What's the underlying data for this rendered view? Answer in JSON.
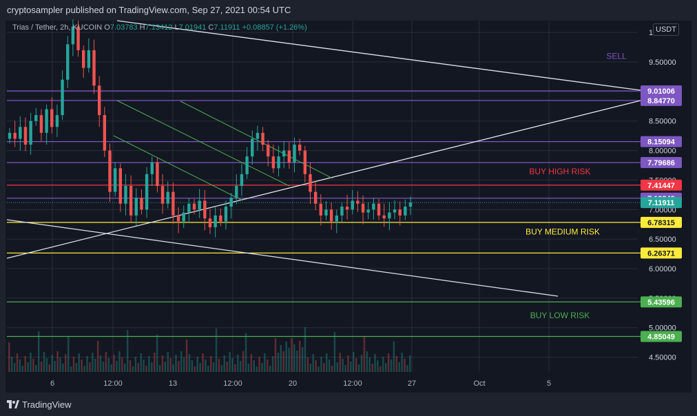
{
  "header": {
    "published": "cryptosampler published on TradingView.com, Sep 27, 2021 00:54 UTC"
  },
  "legend": {
    "pair": "Trias / Tether, 2h, KUCOIN",
    "o_label": "O",
    "o": "7.03783",
    "h_label": "H",
    "h": "7.13412",
    "l_label": "L",
    "l": "7.01941",
    "c_label": "C",
    "c": "7.11911",
    "change": "+0.08857 (+1.26%)"
  },
  "currency_button": "USDT",
  "footer": {
    "brand": "TradingView"
  },
  "colors": {
    "background": "#131722",
    "grid": "#2a2e39",
    "up": "#26a69a",
    "down": "#ef5350",
    "purple": "#7e57c2",
    "red": "#f23645",
    "yellow": "#ffeb3b",
    "green": "#4caf50",
    "white": "#d1d4dc"
  },
  "chart_data": {
    "type": "candlestick",
    "symbol": "Trias / Tether",
    "interval": "2h",
    "exchange": "KUCOIN",
    "last_price": 7.11911,
    "y_ticks": [
      "1",
      "9.50000",
      "9.00000",
      "8.50000",
      "8.00000",
      "7.50000",
      "7.00000",
      "6.50000",
      "6.00000",
      "5.50000",
      "5.00000",
      "4.50000"
    ],
    "x_ticks": [
      "6",
      "12:00",
      "13",
      "12:00",
      "20",
      "12:00",
      "27",
      "Oct",
      "5"
    ],
    "ylim": [
      4.25,
      10.2
    ],
    "series_close": [
      8.3,
      8.2,
      8.4,
      8.1,
      8.5,
      8.6,
      8.3,
      8.7,
      8.4,
      8.6,
      9.2,
      9.8,
      10.1,
      9.7,
      9.4,
      9.7,
      9.1,
      8.6,
      8.0,
      7.3,
      7.7,
      7.1,
      7.4,
      6.9,
      7.2,
      7.0,
      7.6,
      7.8,
      7.4,
      7.1,
      7.3,
      6.9,
      6.8,
      6.95,
      7.1,
      7.0,
      7.15,
      6.85,
      6.7,
      6.9,
      6.8,
      7.05,
      7.2,
      7.4,
      7.6,
      7.9,
      8.2,
      8.3,
      8.1,
      7.9,
      7.7,
      7.9,
      8.0,
      7.8,
      8.1,
      8.0,
      7.6,
      7.3,
      7.1,
      6.9,
      7.0,
      6.8,
      6.9,
      7.05,
      7.0,
      7.15,
      7.1,
      6.95,
      7.0,
      7.1,
      6.9,
      6.85,
      6.95,
      7.0,
      6.9,
      7.05,
      7.12
    ],
    "support_resistance": [
      {
        "value": 9.01006,
        "label": "9.01006",
        "color": "#7e57c2"
      },
      {
        "value": 8.8477,
        "label": "8.84770",
        "color": "#7e57c2"
      },
      {
        "value": 8.15094,
        "label": "8.15094",
        "color": "#7e57c2"
      },
      {
        "value": 7.79686,
        "label": "7.79686",
        "color": "#7e57c2"
      },
      {
        "value": 7.41447,
        "label": "7.41447",
        "color": "#f23645"
      },
      {
        "value": 7.19249,
        "label": "7.19249",
        "color": "#7e57c2"
      },
      {
        "value": 6.78315,
        "label": "6.78315",
        "color": "#ffeb3b"
      },
      {
        "value": 6.26371,
        "label": "6.26371",
        "color": "#ffeb3b"
      },
      {
        "value": 5.43596,
        "label": "5.43596",
        "color": "#4caf50"
      },
      {
        "value": 4.85049,
        "label": "4.85049",
        "color": "#4caf50"
      }
    ],
    "zones": [
      {
        "text": "SELL",
        "color": "#7e57c2",
        "price": 9.55
      },
      {
        "text": "BUY HIGH RISK",
        "color": "#f23645",
        "price": 7.6
      },
      {
        "text": "BUY MEDIUM RISK",
        "color": "#ffeb3b",
        "price": 6.58
      },
      {
        "text": "BUY LOW RISK",
        "color": "#4caf50",
        "price": 5.16
      }
    ]
  }
}
